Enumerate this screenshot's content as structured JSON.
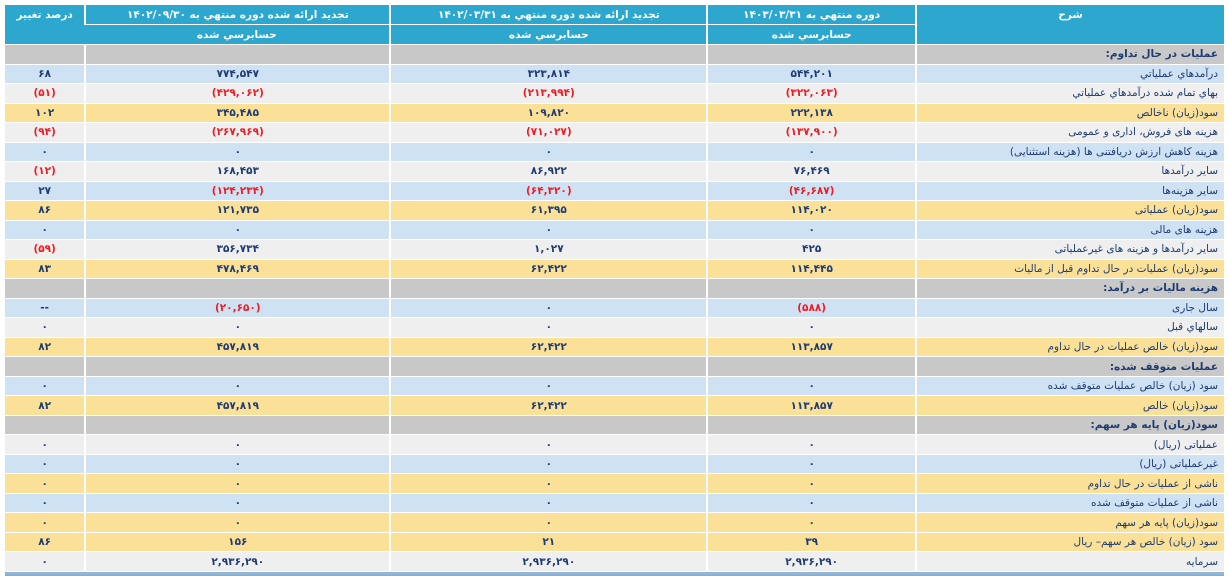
{
  "header": {
    "desc": "شرح",
    "col_current": {
      "period": "دوره منتهي به ۱۴۰۳/۰۳/۳۱",
      "audit": "حسابرسي شده"
    },
    "col_restated_period": {
      "period": "تجدید ارائه شده دوره منتهي به ۱۴۰۲/۰۳/۳۱",
      "audit": "حسابرسي شده"
    },
    "col_restated_year": {
      "period": "تجدید ارائه شده دوره منتهي به ۱۴۰۲/۰۹/۳۰",
      "audit": "حسابرسي شده"
    },
    "pct": "درصد تغییر"
  },
  "colors": {
    "header_bg": "#2ea7cf",
    "section_bg": "#c8c8c8",
    "row_blue": "#cfe2f4",
    "row_plain": "#efefef",
    "row_yellow": "#fbe198",
    "text_navy": "#1e3c71",
    "text_negative": "#ed1c24",
    "bottom_bar": "#8fb6da"
  },
  "rows": [
    {
      "type": "section",
      "label": "عمليات در حال تداوم:"
    },
    {
      "type": "data",
      "tone": "blue",
      "label": "درآمدهاي عملياتي",
      "current": "۵۴۴,۲۰۱",
      "restated_period": "۳۲۳,۸۱۴",
      "restated_year": "۷۷۴,۵۴۷",
      "change": "۶۸"
    },
    {
      "type": "data",
      "tone": "plain",
      "label": "بهاي تمام شده درآمدهاي عملياتي",
      "current": "(۳۲۲,۰۶۳)",
      "restated_period": "(۲۱۳,۹۹۴)",
      "restated_year": "(۴۲۹,۰۶۲)",
      "change": "(۵۱)"
    },
    {
      "type": "data",
      "tone": "yellow",
      "label": "سود(زيان) ناخالص",
      "current": "۲۲۲,۱۳۸",
      "restated_period": "۱۰۹,۸۲۰",
      "restated_year": "۳۴۵,۴۸۵",
      "change": "۱۰۲"
    },
    {
      "type": "data",
      "tone": "plain",
      "label": "هزينه هاى فروش، ادارى و عمومى",
      "current": "(۱۳۷,۹۰۰)",
      "restated_period": "(۷۱,۰۲۷)",
      "restated_year": "(۲۶۷,۹۶۹)",
      "change": "(۹۴)"
    },
    {
      "type": "data",
      "tone": "blue",
      "label": "هزينه کاهش ارزش دريافتنى ها (هزينه استثنايى)",
      "current": "۰",
      "restated_period": "۰",
      "restated_year": "۰",
      "change": "۰"
    },
    {
      "type": "data",
      "tone": "plain",
      "label": "ساير درآمدها",
      "current": "۷۶,۴۶۹",
      "restated_period": "۸۶,۹۲۲",
      "restated_year": "۱۶۸,۴۵۳",
      "change": "(۱۲)"
    },
    {
      "type": "data",
      "tone": "blue",
      "label": "ساير هزينه‌ها",
      "current": "(۴۶,۶۸۷)",
      "restated_period": "(۶۴,۳۲۰)",
      "restated_year": "(۱۲۴,۲۳۴)",
      "change": "۲۷"
    },
    {
      "type": "data",
      "tone": "yellow",
      "label": "سود(زيان) عملياتى",
      "current": "۱۱۴,۰۲۰",
      "restated_period": "۶۱,۳۹۵",
      "restated_year": "۱۲۱,۷۳۵",
      "change": "۸۶"
    },
    {
      "type": "data",
      "tone": "blue",
      "label": "هزينه هاى مالى",
      "current": "۰",
      "restated_period": "۰",
      "restated_year": "۰",
      "change": "۰"
    },
    {
      "type": "data",
      "tone": "plain",
      "label": "ساير درآمدها و هزينه هاى غيرعملياتى",
      "current": "۴۲۵",
      "restated_period": "۱,۰۲۷",
      "restated_year": "۳۵۶,۷۳۴",
      "change": "(۵۹)"
    },
    {
      "type": "data",
      "tone": "yellow",
      "label": "سود(زيان) عمليات در حال تداوم قبل از ماليات",
      "current": "۱۱۴,۴۴۵",
      "restated_period": "۶۲,۴۲۲",
      "restated_year": "۴۷۸,۴۶۹",
      "change": "۸۳"
    },
    {
      "type": "section",
      "label": "هزينه ماليات بر درآمد:"
    },
    {
      "type": "data",
      "tone": "blue",
      "label": "سال جارى",
      "current": "(۵۸۸)",
      "restated_period": "۰",
      "restated_year": "(۲۰,۶۵۰)",
      "change": "--"
    },
    {
      "type": "data",
      "tone": "plain",
      "label": "سالهاي قبل",
      "current": "۰",
      "restated_period": "۰",
      "restated_year": "۰",
      "change": "۰"
    },
    {
      "type": "data",
      "tone": "yellow",
      "label": "سود(زيان) خالص عمليات در حال تداوم",
      "current": "۱۱۳,۸۵۷",
      "restated_period": "۶۲,۴۲۲",
      "restated_year": "۴۵۷,۸۱۹",
      "change": "۸۲"
    },
    {
      "type": "section",
      "label": "عمليات متوقف شده:"
    },
    {
      "type": "data",
      "tone": "blue",
      "label": "سود (زيان) خالص عمليات متوقف شده",
      "current": "۰",
      "restated_period": "۰",
      "restated_year": "۰",
      "change": "۰"
    },
    {
      "type": "data",
      "tone": "yellow",
      "label": "سود(زيان) خالص",
      "current": "۱۱۳,۸۵۷",
      "restated_period": "۶۲,۴۲۲",
      "restated_year": "۴۵۷,۸۱۹",
      "change": "۸۲"
    },
    {
      "type": "section",
      "label": "سود(زيان) پايه هر سهم:"
    },
    {
      "type": "data",
      "tone": "plain",
      "label": "عملياتى (ريال)",
      "current": "۰",
      "restated_period": "۰",
      "restated_year": "۰",
      "change": "۰"
    },
    {
      "type": "data",
      "tone": "blue",
      "label": "غيرعملياتى (ريال)",
      "current": "۰",
      "restated_period": "۰",
      "restated_year": "۰",
      "change": "۰"
    },
    {
      "type": "data",
      "tone": "yellow",
      "label": "ناشى از عمليات در حال تداوم",
      "current": "۰",
      "restated_period": "۰",
      "restated_year": "۰",
      "change": "۰"
    },
    {
      "type": "data",
      "tone": "blue",
      "label": "ناشى از عمليات متوقف شده",
      "current": "۰",
      "restated_period": "۰",
      "restated_year": "۰",
      "change": "۰"
    },
    {
      "type": "data",
      "tone": "yellow",
      "label": "سود(زيان) پايه هر سهم",
      "current": "۰",
      "restated_period": "۰",
      "restated_year": "۰",
      "change": "۰"
    },
    {
      "type": "data",
      "tone": "yellow",
      "label": "سود (زيان) خالص هر سهم– ريال",
      "current": "۳۹",
      "restated_period": "۲۱",
      "restated_year": "۱۵۶",
      "change": "۸۶"
    },
    {
      "type": "data",
      "tone": "plain",
      "label": "سرمايه",
      "current": "۲,۹۳۶,۲۹۰",
      "restated_period": "۲,۹۳۶,۲۹۰",
      "restated_year": "۲,۹۳۶,۲۹۰",
      "change": "۰"
    }
  ]
}
